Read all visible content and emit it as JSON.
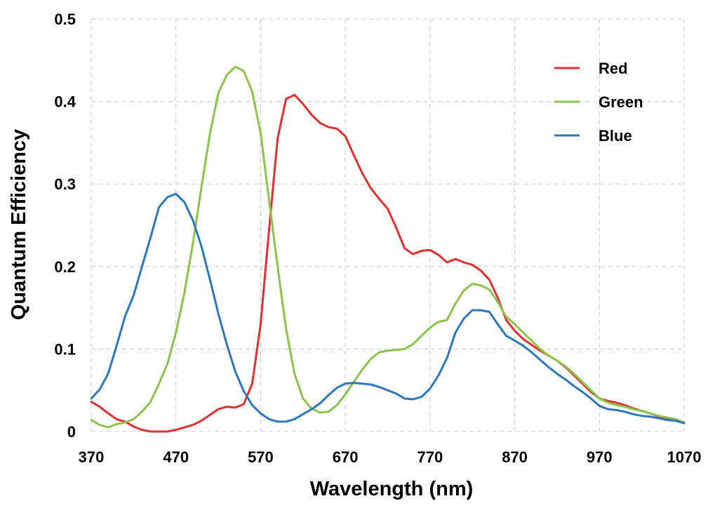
{
  "chart_data": {
    "type": "line",
    "title": "",
    "xlabel": "Wavelength (nm)",
    "ylabel": "Quantum Efficiency",
    "xlim": [
      370,
      1070
    ],
    "ylim": [
      0,
      0.5
    ],
    "x_ticks": [
      "370",
      "470",
      "570",
      "670",
      "770",
      "870",
      "970",
      "1070"
    ],
    "y_ticks": [
      "0",
      "0.1",
      "0.2",
      "0.3",
      "0.4",
      "0.5"
    ],
    "grid": true,
    "legend_position": "top-right",
    "series": [
      {
        "name": "Red",
        "color": "#e03030",
        "points": [
          [
            370,
            0.036
          ],
          [
            380,
            0.03
          ],
          [
            390,
            0.022
          ],
          [
            400,
            0.015
          ],
          [
            410,
            0.012
          ],
          [
            420,
            0.006
          ],
          [
            430,
            0.002
          ],
          [
            440,
            0.0
          ],
          [
            450,
            0.0
          ],
          [
            460,
            0.0
          ],
          [
            470,
            0.002
          ],
          [
            480,
            0.005
          ],
          [
            490,
            0.008
          ],
          [
            500,
            0.013
          ],
          [
            510,
            0.02
          ],
          [
            520,
            0.027
          ],
          [
            530,
            0.03
          ],
          [
            540,
            0.029
          ],
          [
            550,
            0.033
          ],
          [
            560,
            0.058
          ],
          [
            570,
            0.13
          ],
          [
            580,
            0.245
          ],
          [
            590,
            0.355
          ],
          [
            600,
            0.403
          ],
          [
            610,
            0.408
          ],
          [
            620,
            0.397
          ],
          [
            630,
            0.384
          ],
          [
            640,
            0.374
          ],
          [
            650,
            0.369
          ],
          [
            660,
            0.367
          ],
          [
            670,
            0.358
          ],
          [
            680,
            0.335
          ],
          [
            690,
            0.313
          ],
          [
            700,
            0.295
          ],
          [
            710,
            0.282
          ],
          [
            720,
            0.27
          ],
          [
            730,
            0.247
          ],
          [
            740,
            0.222
          ],
          [
            750,
            0.215
          ],
          [
            760,
            0.219
          ],
          [
            770,
            0.22
          ],
          [
            780,
            0.214
          ],
          [
            790,
            0.205
          ],
          [
            800,
            0.209
          ],
          [
            810,
            0.205
          ],
          [
            820,
            0.202
          ],
          [
            830,
            0.195
          ],
          [
            840,
            0.184
          ],
          [
            850,
            0.162
          ],
          [
            860,
            0.135
          ],
          [
            870,
            0.122
          ],
          [
            880,
            0.112
          ],
          [
            890,
            0.105
          ],
          [
            900,
            0.098
          ],
          [
            910,
            0.092
          ],
          [
            920,
            0.086
          ],
          [
            930,
            0.078
          ],
          [
            940,
            0.068
          ],
          [
            950,
            0.058
          ],
          [
            960,
            0.048
          ],
          [
            970,
            0.04
          ],
          [
            980,
            0.037
          ],
          [
            990,
            0.035
          ],
          [
            1000,
            0.032
          ],
          [
            1010,
            0.028
          ],
          [
            1020,
            0.025
          ],
          [
            1030,
            0.022
          ],
          [
            1040,
            0.018
          ],
          [
            1050,
            0.016
          ],
          [
            1060,
            0.015
          ],
          [
            1070,
            0.011
          ]
        ]
      },
      {
        "name": "Green",
        "color": "#8cc34a",
        "points": [
          [
            370,
            0.014
          ],
          [
            380,
            0.008
          ],
          [
            390,
            0.005
          ],
          [
            400,
            0.009
          ],
          [
            410,
            0.011
          ],
          [
            420,
            0.015
          ],
          [
            430,
            0.024
          ],
          [
            440,
            0.036
          ],
          [
            450,
            0.058
          ],
          [
            460,
            0.082
          ],
          [
            470,
            0.12
          ],
          [
            480,
            0.168
          ],
          [
            490,
            0.228
          ],
          [
            500,
            0.295
          ],
          [
            510,
            0.36
          ],
          [
            520,
            0.41
          ],
          [
            530,
            0.432
          ],
          [
            540,
            0.442
          ],
          [
            550,
            0.437
          ],
          [
            560,
            0.412
          ],
          [
            570,
            0.362
          ],
          [
            580,
            0.28
          ],
          [
            590,
            0.2
          ],
          [
            600,
            0.125
          ],
          [
            610,
            0.07
          ],
          [
            620,
            0.04
          ],
          [
            630,
            0.028
          ],
          [
            640,
            0.023
          ],
          [
            650,
            0.024
          ],
          [
            660,
            0.032
          ],
          [
            670,
            0.045
          ],
          [
            680,
            0.06
          ],
          [
            690,
            0.075
          ],
          [
            700,
            0.088
          ],
          [
            710,
            0.096
          ],
          [
            720,
            0.098
          ],
          [
            730,
            0.099
          ],
          [
            740,
            0.1
          ],
          [
            750,
            0.106
          ],
          [
            760,
            0.116
          ],
          [
            770,
            0.126
          ],
          [
            780,
            0.133
          ],
          [
            790,
            0.135
          ],
          [
            800,
            0.155
          ],
          [
            810,
            0.171
          ],
          [
            820,
            0.179
          ],
          [
            830,
            0.177
          ],
          [
            840,
            0.172
          ],
          [
            850,
            0.157
          ],
          [
            860,
            0.139
          ],
          [
            870,
            0.13
          ],
          [
            880,
            0.12
          ],
          [
            890,
            0.11
          ],
          [
            900,
            0.1
          ],
          [
            910,
            0.092
          ],
          [
            920,
            0.086
          ],
          [
            930,
            0.079
          ],
          [
            940,
            0.07
          ],
          [
            950,
            0.06
          ],
          [
            960,
            0.05
          ],
          [
            970,
            0.04
          ],
          [
            980,
            0.035
          ],
          [
            990,
            0.032
          ],
          [
            1000,
            0.03
          ],
          [
            1010,
            0.027
          ],
          [
            1020,
            0.025
          ],
          [
            1030,
            0.022
          ],
          [
            1040,
            0.019
          ],
          [
            1050,
            0.017
          ],
          [
            1060,
            0.015
          ],
          [
            1070,
            0.011
          ]
        ]
      },
      {
        "name": "Blue",
        "color": "#2b78bd",
        "points": [
          [
            370,
            0.04
          ],
          [
            380,
            0.051
          ],
          [
            390,
            0.07
          ],
          [
            400,
            0.104
          ],
          [
            410,
            0.14
          ],
          [
            420,
            0.165
          ],
          [
            430,
            0.2
          ],
          [
            440,
            0.235
          ],
          [
            450,
            0.272
          ],
          [
            460,
            0.284
          ],
          [
            470,
            0.288
          ],
          [
            480,
            0.278
          ],
          [
            490,
            0.256
          ],
          [
            500,
            0.225
          ],
          [
            510,
            0.185
          ],
          [
            520,
            0.143
          ],
          [
            530,
            0.106
          ],
          [
            540,
            0.073
          ],
          [
            550,
            0.049
          ],
          [
            560,
            0.032
          ],
          [
            570,
            0.022
          ],
          [
            580,
            0.015
          ],
          [
            590,
            0.012
          ],
          [
            600,
            0.012
          ],
          [
            610,
            0.015
          ],
          [
            620,
            0.021
          ],
          [
            630,
            0.027
          ],
          [
            640,
            0.034
          ],
          [
            650,
            0.044
          ],
          [
            660,
            0.053
          ],
          [
            670,
            0.058
          ],
          [
            680,
            0.059
          ],
          [
            690,
            0.058
          ],
          [
            700,
            0.057
          ],
          [
            710,
            0.054
          ],
          [
            720,
            0.05
          ],
          [
            730,
            0.046
          ],
          [
            740,
            0.04
          ],
          [
            750,
            0.039
          ],
          [
            760,
            0.042
          ],
          [
            770,
            0.052
          ],
          [
            780,
            0.068
          ],
          [
            790,
            0.089
          ],
          [
            800,
            0.12
          ],
          [
            810,
            0.137
          ],
          [
            820,
            0.147
          ],
          [
            830,
            0.147
          ],
          [
            840,
            0.145
          ],
          [
            850,
            0.13
          ],
          [
            860,
            0.116
          ],
          [
            870,
            0.11
          ],
          [
            880,
            0.104
          ],
          [
            890,
            0.096
          ],
          [
            900,
            0.087
          ],
          [
            910,
            0.078
          ],
          [
            920,
            0.07
          ],
          [
            930,
            0.063
          ],
          [
            940,
            0.055
          ],
          [
            950,
            0.048
          ],
          [
            960,
            0.04
          ],
          [
            970,
            0.031
          ],
          [
            980,
            0.027
          ],
          [
            990,
            0.026
          ],
          [
            1000,
            0.024
          ],
          [
            1010,
            0.021
          ],
          [
            1020,
            0.019
          ],
          [
            1030,
            0.018
          ],
          [
            1040,
            0.016
          ],
          [
            1050,
            0.014
          ],
          [
            1060,
            0.013
          ],
          [
            1070,
            0.01
          ]
        ]
      }
    ]
  }
}
